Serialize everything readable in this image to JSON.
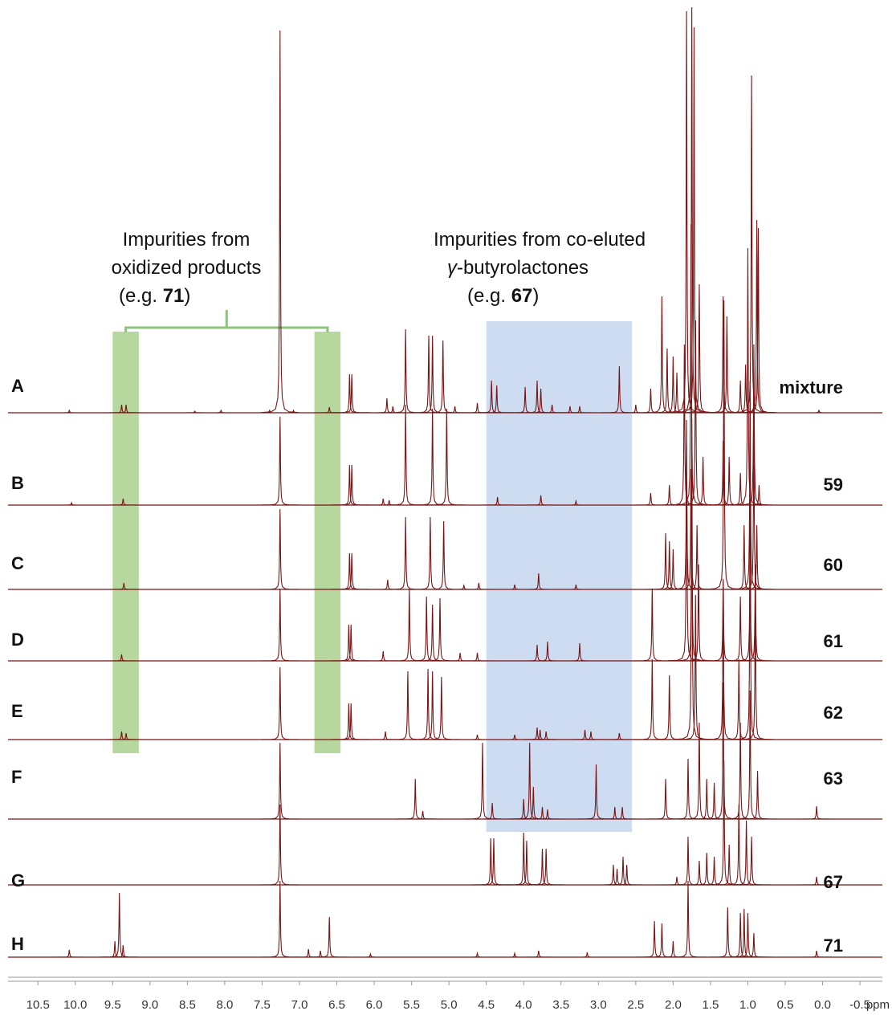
{
  "chart_data": {
    "type": "nmr-stack",
    "xlim": [
      10.9,
      -0.8
    ],
    "xticks": [
      10.5,
      {
        "value": 10,
        "label": "10.0"
      },
      9.5,
      {
        "value": 9,
        "label": "9.0"
      },
      8.5,
      {
        "value": 8,
        "label": "8.0"
      },
      7.5,
      {
        "value": 7,
        "label": "7.0"
      },
      6.5,
      {
        "value": 6,
        "label": "6.0"
      },
      5.5,
      {
        "value": 5,
        "label": "5.0"
      },
      4.5,
      {
        "value": 4,
        "label": "4.0"
      },
      3.5,
      {
        "value": 3,
        "label": "3.0"
      },
      2.5,
      {
        "value": 2,
        "label": "2.0"
      },
      1.5,
      {
        "value": 1,
        "label": "1.0"
      },
      0.5,
      {
        "value": 0,
        "label": "0.0"
      },
      -0.5
    ],
    "xlabel": "ppm",
    "annotations": [
      {
        "lines": [
          "Impurities from",
          "oxidized products"
        ],
        "prefix": "(e.g. ",
        "compound": "71",
        "suffix": ")",
        "color": "#a9d18e",
        "ranges": [
          [
            9.5,
            9.15
          ],
          [
            6.8,
            6.45
          ]
        ]
      },
      {
        "lines": [
          "Impurities from co-eluted"
        ],
        "greek": "γ",
        "line2": "-butyrolactones",
        "prefix": "(e.g. ",
        "compound": "67",
        "suffix": ")",
        "color": "#c5d6f0",
        "ranges": [
          [
            4.5,
            2.55
          ]
        ]
      }
    ],
    "series": [
      {
        "name": "A",
        "label": "mixture",
        "color": "#7a1515",
        "x": [
          10.08,
          9.38,
          9.32,
          8.4,
          8.05,
          7.4,
          7.26,
          7.08,
          6.6,
          6.33,
          6.3,
          5.83,
          5.75,
          5.58,
          5.27,
          5.22,
          5.08,
          4.92,
          4.62,
          4.43,
          4.36,
          3.98,
          3.82,
          3.77,
          3.62,
          3.38,
          3.25,
          2.72,
          2.5,
          2.3,
          2.15,
          2.08,
          2.0,
          1.95,
          1.82,
          1.75,
          1.72,
          1.65,
          1.33,
          1.28,
          1.1,
          1.03,
          0.95,
          0.88,
          0.86,
          0.05
        ],
        "values": [
          3,
          10,
          10,
          2,
          3,
          3,
          476,
          3,
          7,
          48,
          48,
          18,
          8,
          104,
          96,
          96,
          90,
          8,
          12,
          40,
          34,
          32,
          40,
          30,
          10,
          8,
          8,
          58,
          10,
          30,
          145,
          80,
          70,
          50,
          500,
          505,
          480,
          160,
          145,
          120,
          40,
          60,
          420,
          240,
          230,
          3
        ]
      },
      {
        "name": "B",
        "label": "59",
        "color": "#7a1515",
        "x": [
          10.05,
          9.36,
          7.26,
          6.33,
          6.3,
          5.88,
          5.8,
          5.58,
          5.22,
          5.03,
          4.35,
          3.77,
          3.3,
          2.3,
          2.05,
          1.85,
          1.76,
          1.7,
          1.6,
          1.33,
          1.25,
          1.1,
          1.0,
          0.92,
          0.85
        ],
        "values": [
          3,
          8,
          110,
          50,
          50,
          8,
          6,
          125,
          120,
          120,
          10,
          12,
          5,
          15,
          25,
          200,
          350,
          230,
          60,
          80,
          60,
          40,
          320,
          200,
          25
        ]
      },
      {
        "name": "C",
        "label": "60",
        "color": "#7a1515",
        "x": [
          9.35,
          7.26,
          6.33,
          6.3,
          5.82,
          5.58,
          5.25,
          5.07,
          4.8,
          4.6,
          4.12,
          3.8,
          3.3,
          2.1,
          2.05,
          2.0,
          1.82,
          1.76,
          1.68,
          1.32,
          1.05,
          0.97,
          0.92,
          0.88
        ],
        "values": [
          8,
          100,
          45,
          45,
          12,
          90,
          90,
          85,
          5,
          8,
          6,
          20,
          6,
          70,
          60,
          50,
          180,
          150,
          80,
          360,
          80,
          260,
          200,
          80
        ]
      },
      {
        "name": "D",
        "label": "61",
        "color": "#7a1515",
        "x": [
          9.38,
          7.26,
          6.34,
          6.31,
          5.88,
          5.53,
          5.3,
          5.22,
          5.12,
          4.85,
          4.62,
          3.82,
          3.68,
          3.25,
          2.28,
          1.82,
          1.75,
          1.66,
          1.33,
          1.1,
          0.97,
          0.9
        ],
        "values": [
          8,
          90,
          45,
          45,
          12,
          90,
          80,
          70,
          78,
          10,
          10,
          20,
          24,
          22,
          90,
          300,
          220,
          120,
          100,
          80,
          160,
          120
        ]
      },
      {
        "name": "E",
        "label": "62",
        "color": "#7a1515",
        "x": [
          9.38,
          9.32,
          7.26,
          6.34,
          6.31,
          5.85,
          5.55,
          5.28,
          5.22,
          5.1,
          4.62,
          4.12,
          3.82,
          3.78,
          3.7,
          3.18,
          3.1,
          2.72,
          2.28,
          2.05,
          1.75,
          1.7,
          1.33,
          1.12,
          0.97,
          0.9
        ],
        "values": [
          10,
          8,
          90,
          45,
          45,
          10,
          85,
          88,
          85,
          78,
          6,
          6,
          15,
          12,
          10,
          12,
          10,
          8,
          100,
          80,
          400,
          180,
          200,
          100,
          300,
          180
        ]
      },
      {
        "name": "F",
        "label": "63",
        "color": "#7a1515",
        "x": [
          7.26,
          5.45,
          5.35,
          4.55,
          4.42,
          4.0,
          3.92,
          3.87,
          3.75,
          3.68,
          3.03,
          2.78,
          2.68,
          2.1,
          1.8,
          1.65,
          1.55,
          1.45,
          1.33,
          1.1,
          0.97,
          0.87,
          0.08
        ],
        "values": [
          95,
          50,
          10,
          95,
          20,
          25,
          95,
          40,
          15,
          12,
          68,
          15,
          15,
          50,
          75,
          120,
          50,
          45,
          170,
          120,
          160,
          60,
          16
        ]
      },
      {
        "name": "G",
        "label": "67",
        "color": "#7a1515",
        "x": [
          7.26,
          4.44,
          4.4,
          4.0,
          3.96,
          3.75,
          3.7,
          2.8,
          2.75,
          2.67,
          2.62,
          1.95,
          1.8,
          1.65,
          1.55,
          1.45,
          1.32,
          1.25,
          1.12,
          1.02,
          0.95,
          0.08
        ],
        "values": [
          100,
          58,
          58,
          65,
          55,
          45,
          45,
          25,
          20,
          35,
          25,
          10,
          60,
          30,
          40,
          35,
          155,
          50,
          100,
          80,
          60,
          10
        ]
      },
      {
        "name": "H",
        "label": "71",
        "color": "#7a1515",
        "x": [
          10.08,
          9.47,
          9.41,
          9.36,
          7.26,
          6.88,
          6.72,
          6.6,
          6.05,
          4.62,
          4.12,
          3.8,
          3.15,
          2.25,
          2.15,
          2.0,
          1.8,
          1.27,
          1.1,
          1.05,
          1.0,
          0.92,
          0.08
        ],
        "values": [
          9,
          20,
          80,
          15,
          95,
          10,
          8,
          50,
          4,
          5,
          5,
          8,
          6,
          45,
          42,
          20,
          95,
          62,
          55,
          60,
          55,
          30,
          8
        ]
      }
    ]
  }
}
